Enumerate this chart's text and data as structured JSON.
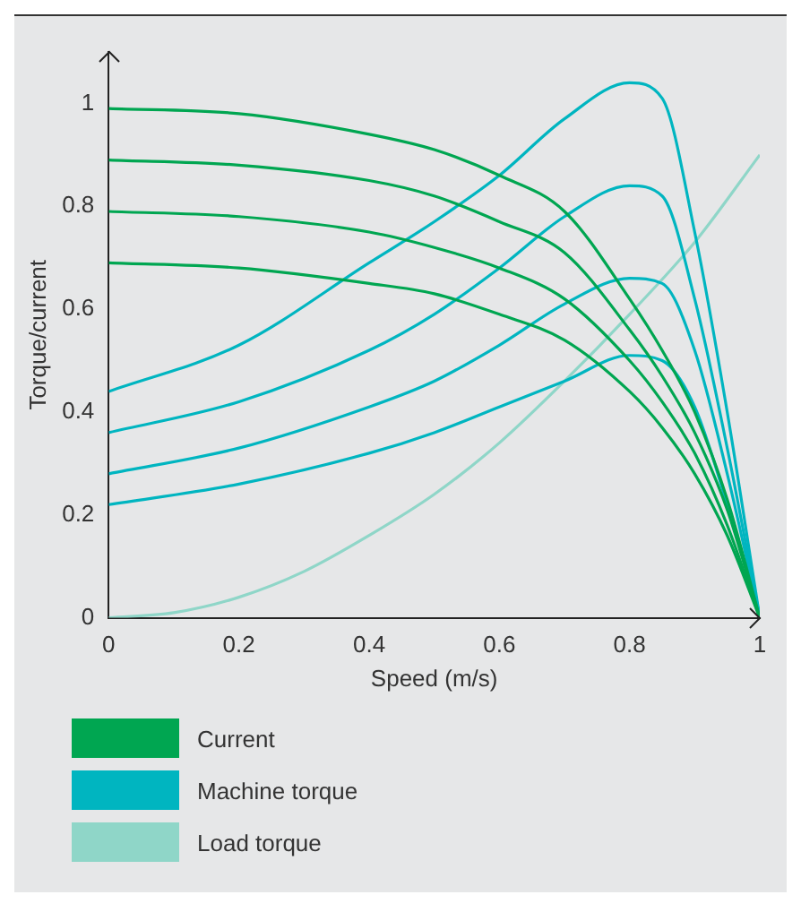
{
  "chart_data": {
    "type": "line",
    "xlabel": "Speed (m/s)",
    "ylabel": "Torque/current",
    "xlim": [
      0,
      1
    ],
    "ylim": [
      0,
      1.1
    ],
    "xticks": [
      0,
      0.2,
      0.4,
      0.6,
      0.8,
      1
    ],
    "yticks": [
      0,
      0.2,
      0.4,
      0.6,
      0.8,
      1
    ],
    "grid": false,
    "legend": "bottom",
    "marker": "none",
    "line_style": "solid",
    "x": [
      0,
      0.2,
      0.4,
      0.5,
      0.6,
      0.7,
      0.8,
      0.85,
      0.9,
      0.95,
      1
    ],
    "series": [
      {
        "name": "Current",
        "color": "#00a651",
        "values": [
          0.99,
          0.98,
          0.94,
          0.91,
          0.86,
          0.79,
          0.62,
          0.52,
          0.4,
          0.23,
          0
        ]
      },
      {
        "color": "#00a651",
        "values": [
          0.89,
          0.88,
          0.85,
          0.82,
          0.77,
          0.71,
          0.56,
          0.47,
          0.36,
          0.21,
          0
        ]
      },
      {
        "color": "#00a651",
        "values": [
          0.79,
          0.78,
          0.75,
          0.72,
          0.68,
          0.62,
          0.5,
          0.42,
          0.32,
          0.18,
          0
        ]
      },
      {
        "color": "#00a651",
        "values": [
          0.69,
          0.68,
          0.65,
          0.63,
          0.59,
          0.54,
          0.44,
          0.37,
          0.28,
          0.16,
          0
        ]
      },
      {
        "name": "Machine torque",
        "color": "#00b5c0",
        "values": [
          0.44,
          0.53,
          0.69,
          0.77,
          0.86,
          0.97,
          1.04,
          1.01,
          0.75,
          0.4,
          0
        ]
      },
      {
        "color": "#00b5c0",
        "values": [
          0.36,
          0.42,
          0.52,
          0.59,
          0.68,
          0.78,
          0.84,
          0.82,
          0.62,
          0.33,
          0
        ]
      },
      {
        "color": "#00b5c0",
        "values": [
          0.28,
          0.33,
          0.41,
          0.46,
          0.53,
          0.61,
          0.66,
          0.65,
          0.52,
          0.28,
          0
        ]
      },
      {
        "color": "#00b5c0",
        "values": [
          0.22,
          0.26,
          0.32,
          0.36,
          0.41,
          0.46,
          0.51,
          0.5,
          0.41,
          0.22,
          0
        ]
      },
      {
        "name": "Load torque",
        "color": "#8fd6c8",
        "x": [
          0,
          0.1,
          0.2,
          0.3,
          0.4,
          0.5,
          0.6,
          0.7,
          0.8,
          0.9,
          1
        ],
        "values": [
          0,
          0.01,
          0.04,
          0.09,
          0.16,
          0.24,
          0.34,
          0.46,
          0.59,
          0.73,
          0.9
        ]
      }
    ]
  }
}
